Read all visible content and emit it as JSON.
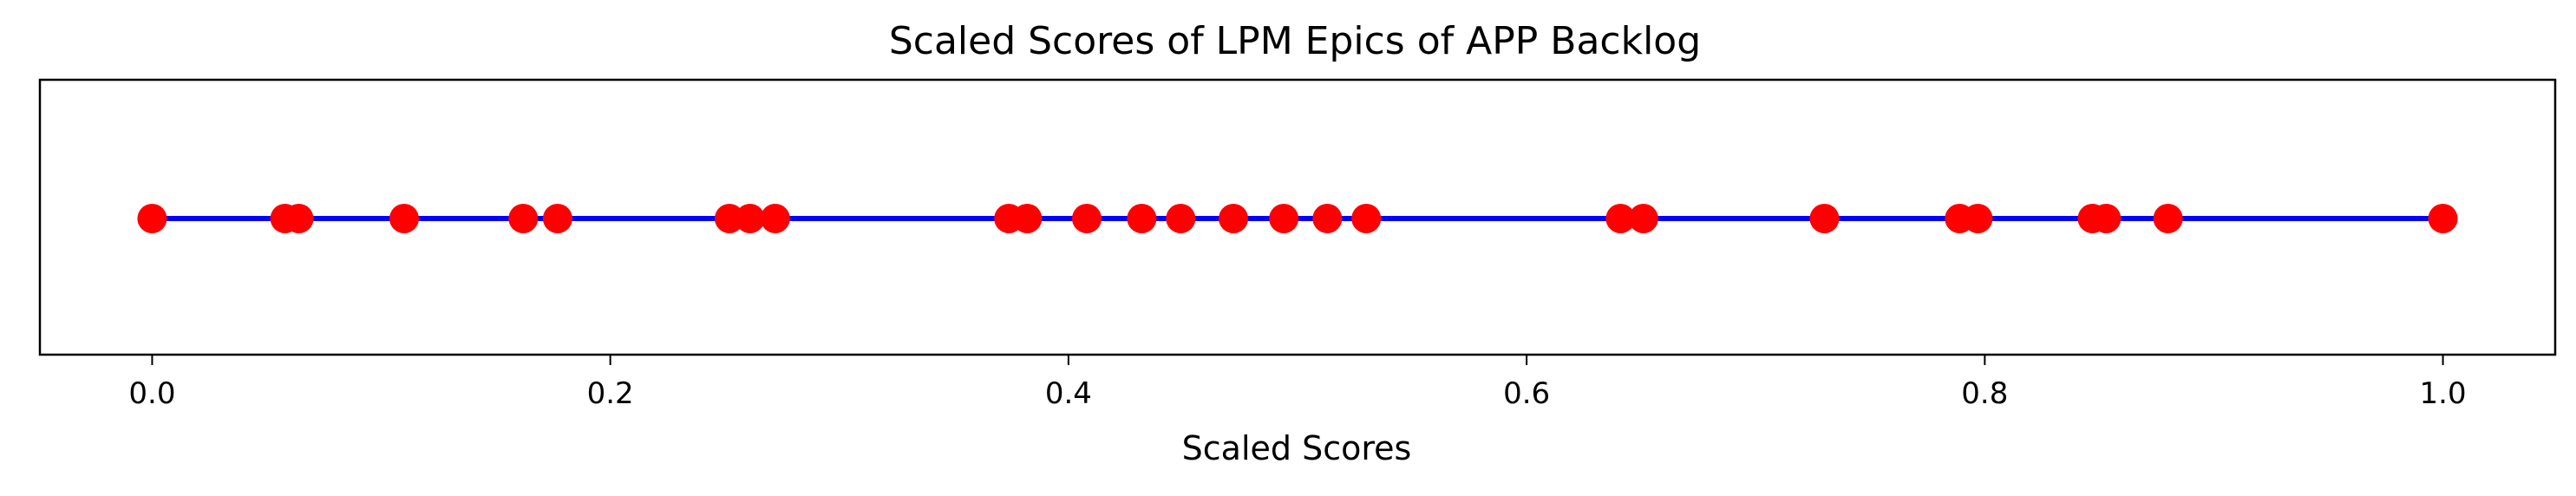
{
  "chart_data": {
    "type": "scatter",
    "title": "Scaled Scores of LPM Epics of APP Backlog",
    "xlabel": "Scaled Scores",
    "ylabel": "",
    "xlim": [
      -0.049,
      1.049
    ],
    "xticks": [
      0.0,
      0.2,
      0.4,
      0.6,
      0.8,
      1.0
    ],
    "xtick_labels": [
      "0.0",
      "0.2",
      "0.4",
      "0.6",
      "0.8",
      "1.0"
    ],
    "y_ticks_visible": false,
    "grid": false,
    "legend": "none",
    "line_color": "#0000ff",
    "marker_color": "#ff0000",
    "series": [
      {
        "x": [
          0.0,
          0.058,
          0.064,
          0.11,
          0.162,
          0.177,
          0.252,
          0.261,
          0.272,
          0.374,
          0.382,
          0.408,
          0.432,
          0.449,
          0.472,
          0.494,
          0.513,
          0.53,
          0.641,
          0.651,
          0.73,
          0.789,
          0.797,
          0.847,
          0.853,
          0.88,
          1.0
        ],
        "y": [
          0,
          0,
          0,
          0,
          0,
          0,
          0,
          0,
          0,
          0,
          0,
          0,
          0,
          0,
          0,
          0,
          0,
          0,
          0,
          0,
          0,
          0,
          0,
          0,
          0,
          0,
          0
        ]
      }
    ]
  }
}
